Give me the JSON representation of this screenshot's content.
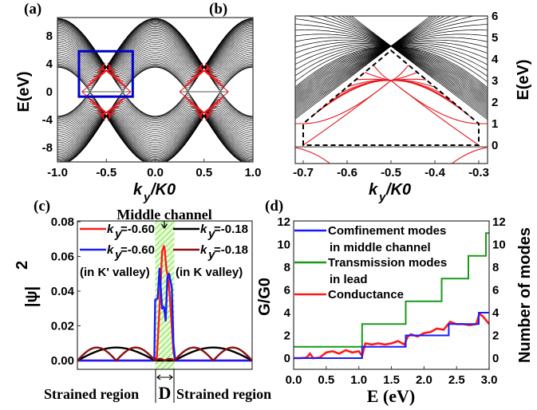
{
  "chart_data": [
    {
      "panel": "(a)",
      "type": "line",
      "xlabel": {
        "k": "k",
        "sub": "y",
        "rest": "/K0"
      },
      "ylabel": "E(eV)",
      "xlim": [
        -1.0,
        1.0
      ],
      "ylim": [
        -10.0,
        10.6
      ],
      "xticks": [
        {
          "v": -1.0,
          "t": "-1.0"
        },
        {
          "v": -0.5,
          "t": "-0.5"
        },
        {
          "v": 0.0,
          "t": "0.0"
        },
        {
          "v": 0.5,
          "t": "0.5"
        },
        {
          "v": 1.0,
          "t": "1.0"
        }
      ],
      "yticks": [
        {
          "v": 8,
          "t": "8"
        },
        {
          "v": 4,
          "t": "4"
        },
        {
          "v": 0,
          "t": "0"
        },
        {
          "v": -4,
          "t": "-4"
        },
        {
          "v": -8,
          "t": "-8"
        }
      ],
      "band_hopping_eV": 3.5,
      "band_count": 40,
      "confined_mode_crossings": [
        [
          -0.5,
          3.0
        ],
        [
          -0.5,
          -3.0
        ],
        [
          0.5,
          3.0
        ],
        [
          0.5,
          -3.0
        ]
      ],
      "highlight_box": {
        "k": [
          -0.78,
          -0.23
        ],
        "E": [
          -0.7,
          5.8
        ],
        "color": "#0000cc"
      },
      "colors": {
        "bands": "#000000",
        "confined": "#e8141a"
      }
    },
    {
      "panel": "(b)",
      "type": "line",
      "xlabel": {
        "k": "k",
        "sub": "y",
        "rest": "/K0"
      },
      "ylabel": "E(eV)",
      "xlim": [
        -0.72,
        -0.28
      ],
      "ylim": [
        -0.85,
        6.0
      ],
      "xticks": [
        {
          "v": -0.7,
          "t": "-0.7"
        },
        {
          "v": -0.6,
          "t": "-0.6"
        },
        {
          "v": -0.5,
          "t": "-0.5"
        },
        {
          "v": -0.4,
          "t": "-0.4"
        },
        {
          "v": -0.3,
          "t": "-0.3"
        }
      ],
      "yticks": [
        {
          "v": 6,
          "t": "6"
        },
        {
          "v": 5,
          "t": "5"
        },
        {
          "v": 4,
          "t": "4"
        },
        {
          "v": 3,
          "t": "3"
        },
        {
          "v": 2,
          "t": "2"
        },
        {
          "v": 1,
          "t": "1"
        },
        {
          "v": 0,
          "t": "0"
        }
      ],
      "dirac_point": [
        -0.5,
        4.6
      ],
      "confined_crossing": [
        -0.5,
        3.0
      ],
      "dashed_region": [
        [
          -0.7,
          0.0
        ],
        [
          -0.7,
          1.0
        ],
        [
          -0.5,
          4.4
        ],
        [
          -0.3,
          1.0
        ],
        [
          -0.3,
          0.0
        ]
      ],
      "colors": {
        "bands": "#000000",
        "confined": "#e8141a"
      }
    },
    {
      "panel": "(c)",
      "type": "line",
      "ylabel": "|ψ|",
      "ylabel_sup": "2",
      "ylim": [
        -0.005,
        0.08
      ],
      "yticks": [
        {
          "v": 0.08,
          "t": "0.08"
        },
        {
          "v": 0.06,
          "t": "0.06"
        },
        {
          "v": 0.04,
          "t": "0.04"
        },
        {
          "v": 0.02,
          "t": "0.02"
        },
        {
          "v": 0.0,
          "t": "0.00"
        }
      ],
      "channel_title": "Middle channel",
      "channel_width_label": "D",
      "channel_half_width": 0.11,
      "left_region_label": "Strained region",
      "right_region_label": "Strained region",
      "legend": [
        {
          "k": "k",
          "sub": "y",
          "value": "=-0.60",
          "color": "#ff1a1a"
        },
        {
          "k": "k",
          "sub": "y",
          "value": "=-0.18",
          "color": "#000000"
        },
        {
          "k": "k",
          "sub": "y",
          "value": "=-0.60",
          "color": "#1a1aff"
        },
        {
          "k": "k",
          "sub": "y",
          "value": "=-0.18",
          "color": "#8b1010"
        }
      ],
      "valley_notes": [
        "(in K' valley)",
        "(in K valley)"
      ],
      "series": [
        {
          "name": "ky=-0.60 K' (red)",
          "color": "#ff1a1a",
          "x": [
            -1,
            -0.12,
            -0.09,
            -0.06,
            -0.03,
            -0.01,
            0.0,
            0.02,
            0.04,
            0.06,
            0.08,
            0.1,
            0.12,
            1
          ],
          "y": [
            0,
            0,
            0.002,
            0.03,
            0.063,
            0.066,
            0.064,
            0.052,
            0.048,
            0.035,
            0.02,
            0.005,
            0,
            0
          ]
        },
        {
          "name": "ky=-0.60 (blue)",
          "color": "#1a1aff",
          "x": [
            -1,
            -0.12,
            -0.11,
            -0.08,
            -0.06,
            -0.03,
            -0.01,
            0.01,
            0.03,
            0.05,
            0.08,
            0.1,
            0.12,
            1
          ],
          "y": [
            0,
            0,
            0.035,
            0.036,
            0.053,
            0.03,
            0.031,
            0.023,
            0.048,
            0.05,
            0.042,
            0.01,
            0,
            0
          ]
        },
        {
          "name": "ky=-0.18 (black)",
          "color": "#000000",
          "side_amplitude": 0.0075,
          "humps_per_side": 1
        },
        {
          "name": "ky=-0.18 K (dark red)",
          "color": "#8b1010",
          "side_amplitude": 0.0075,
          "humps_per_side": 2
        }
      ]
    },
    {
      "panel": "(d)",
      "type": "line",
      "xlabel": "E (eV)",
      "ylabel": "G/G0",
      "ylabel_right": "Number of modes",
      "xlim": [
        0,
        3.0
      ],
      "ylim": [
        -1,
        12
      ],
      "xticks": [
        {
          "v": 0,
          "t": "0.0"
        },
        {
          "v": 0.5,
          "t": "0.5"
        },
        {
          "v": 1.0,
          "t": "1.0"
        },
        {
          "v": 1.5,
          "t": "1.5"
        },
        {
          "v": 2.0,
          "t": "2.0"
        },
        {
          "v": 2.5,
          "t": "2.5"
        },
        {
          "v": 3.0,
          "t": "3.0"
        }
      ],
      "yticks": [
        {
          "v": 12,
          "t": "12"
        },
        {
          "v": 10,
          "t": "10"
        },
        {
          "v": 8,
          "t": "8"
        },
        {
          "v": 6,
          "t": "6"
        },
        {
          "v": 4,
          "t": "4"
        },
        {
          "v": 2,
          "t": "2"
        },
        {
          "v": 0,
          "t": "0"
        }
      ],
      "legend": [
        {
          "lines": [
            "Comfinement modes",
            "in middle channel"
          ],
          "color": "#1a1aff"
        },
        {
          "lines": [
            "Transmission modes",
            "in lead"
          ],
          "color": "#1a9a1a"
        },
        {
          "lines": [
            "Conductance"
          ],
          "color": "#ff1a1a"
        }
      ],
      "series": [
        {
          "name": "Confinement modes in middle channel",
          "color": "#1a1aff",
          "step": true,
          "x": [
            0,
            1.05,
            1.72,
            2.38,
            2.84,
            3.0
          ],
          "y": [
            0,
            1,
            2,
            3,
            4,
            4
          ]
        },
        {
          "name": "Transmission modes in lead",
          "color": "#1a9a1a",
          "step": true,
          "x": [
            0,
            1.05,
            1.72,
            2.27,
            2.68,
            2.95,
            3.0
          ],
          "y": [
            1,
            3,
            5,
            7,
            9,
            11,
            11
          ]
        },
        {
          "name": "Conductance",
          "color": "#ff1a1a",
          "step": false,
          "x": [
            0,
            0.1,
            0.2,
            0.25,
            0.3,
            0.4,
            0.5,
            0.6,
            0.7,
            0.8,
            0.9,
            1.0,
            1.05,
            1.1,
            1.2,
            1.3,
            1.4,
            1.5,
            1.6,
            1.7,
            1.75,
            1.8,
            1.9,
            2.0,
            2.1,
            2.2,
            2.3,
            2.4,
            2.5,
            2.6,
            2.7,
            2.8,
            2.85,
            2.9,
            3.0
          ],
          "y": [
            0,
            0,
            0.05,
            0.4,
            0,
            0.05,
            0.5,
            0.6,
            0.4,
            0.7,
            0.5,
            0.6,
            0.2,
            1.3,
            1.2,
            1.3,
            1.2,
            1.3,
            1.5,
            1.2,
            1.9,
            2.1,
            1.9,
            2.2,
            2.3,
            2.6,
            2.5,
            3.2,
            3.0,
            3.0,
            2.9,
            3.0,
            3.9,
            3.7,
            3.0
          ]
        }
      ]
    }
  ]
}
